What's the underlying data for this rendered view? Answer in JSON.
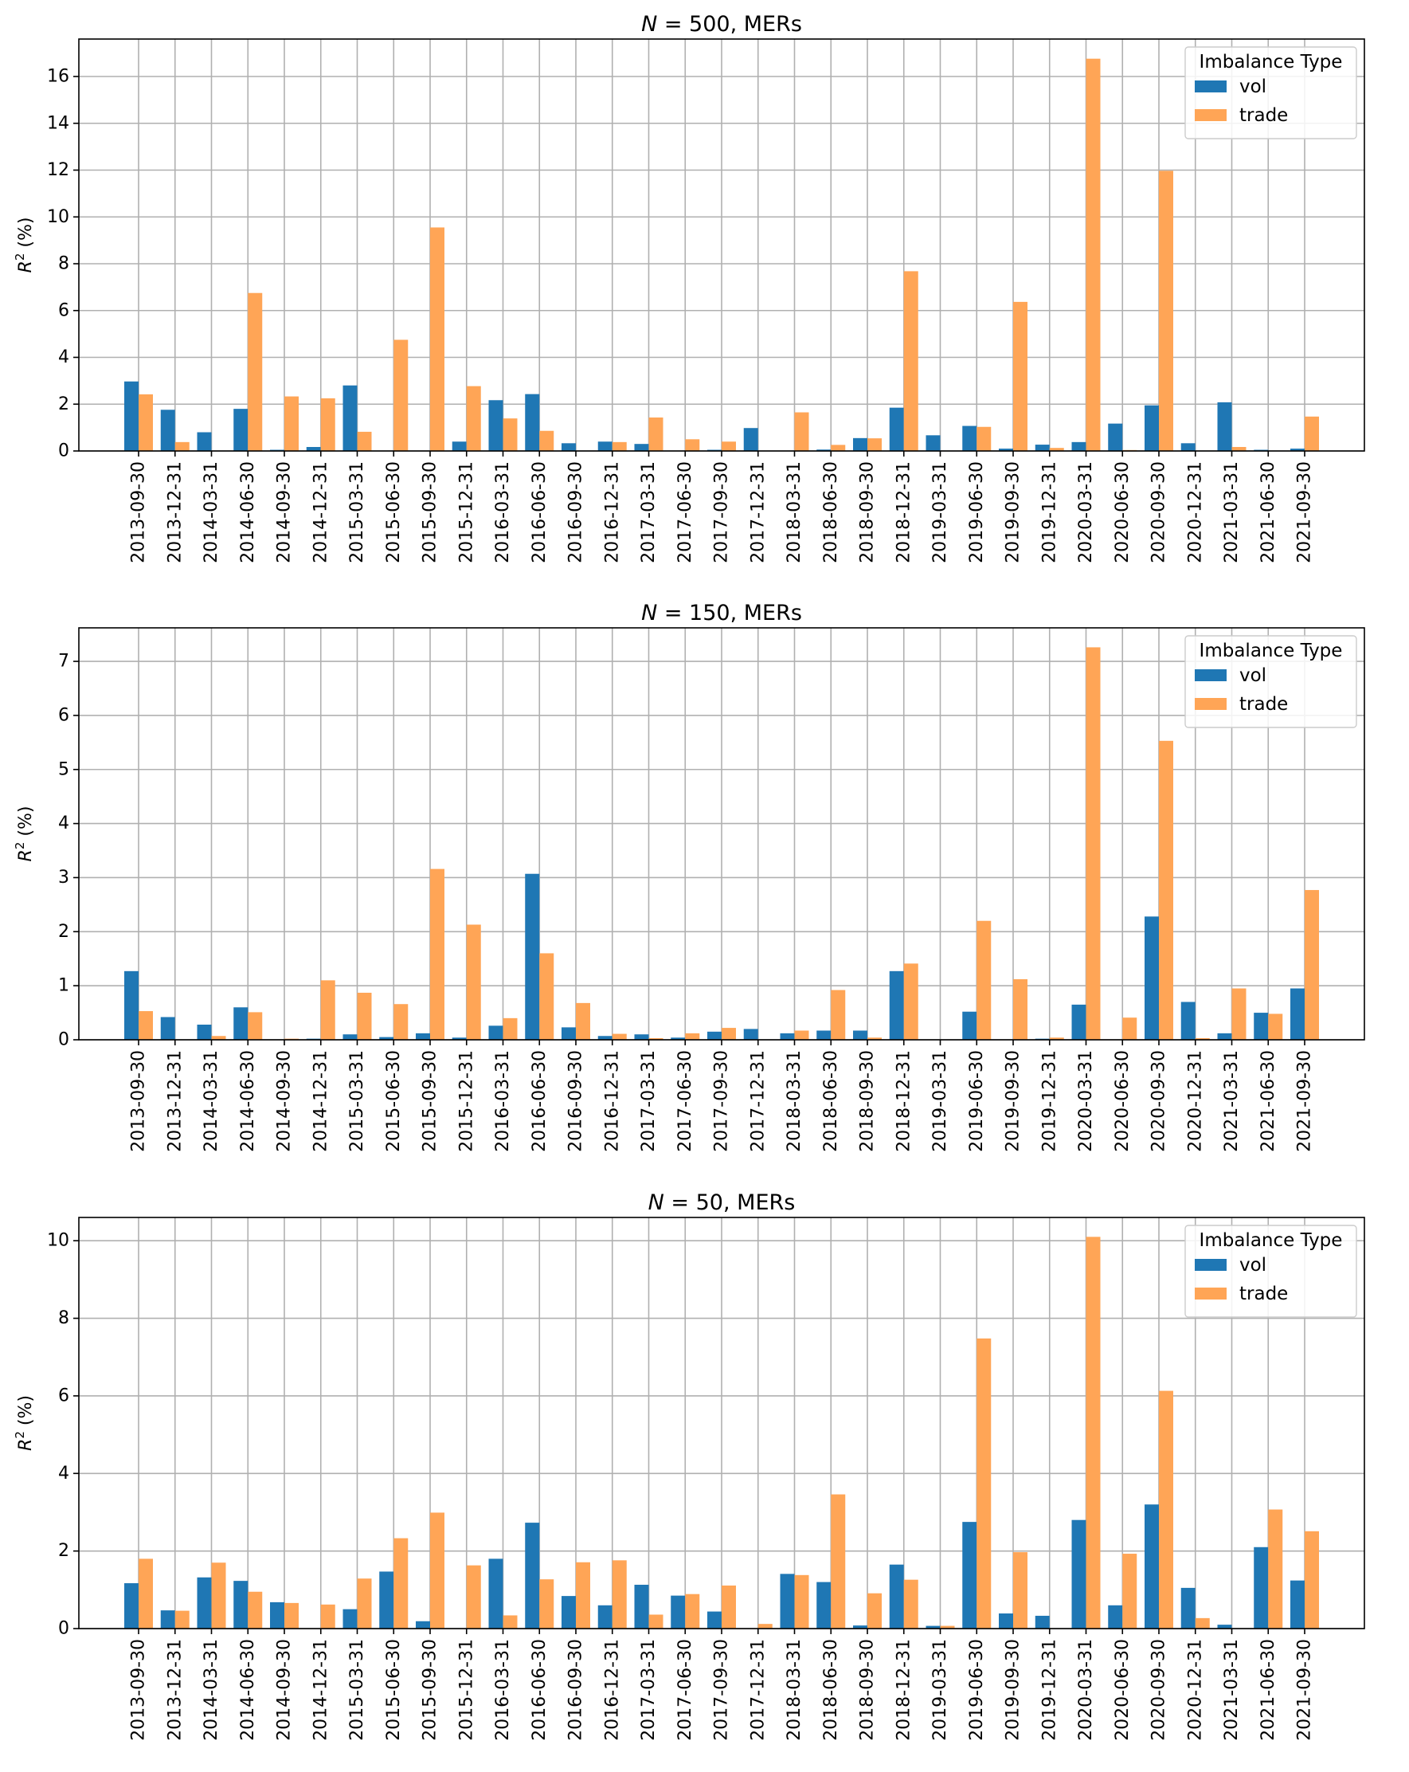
{
  "chart_data": [
    {
      "type": "bar",
      "title_prefix": "N",
      "title_suffix": " = 500, MERs",
      "ylabel": "R",
      "ylabel_sup": "2",
      "ylabel_suffix": " (%)",
      "ylim": [
        0,
        17.6
      ],
      "yticks": [
        0,
        2,
        4,
        6,
        8,
        10,
        12,
        14,
        16
      ],
      "grid": true,
      "legend_placement": "top-right",
      "legend_title": "Imbalance Type",
      "categories": [
        "2013-09-30",
        "2013-12-31",
        "2014-03-31",
        "2014-06-30",
        "2014-09-30",
        "2014-12-31",
        "2015-03-31",
        "2015-06-30",
        "2015-09-30",
        "2015-12-31",
        "2016-03-31",
        "2016-06-30",
        "2016-09-30",
        "2016-12-31",
        "2017-03-31",
        "2017-06-30",
        "2017-09-30",
        "2017-12-31",
        "2018-03-31",
        "2018-06-30",
        "2018-09-30",
        "2018-12-31",
        "2019-03-31",
        "2019-06-30",
        "2019-09-30",
        "2019-12-31",
        "2020-03-31",
        "2020-06-30",
        "2020-09-30",
        "2020-12-31",
        "2021-03-31",
        "2021-06-30",
        "2021-09-30"
      ],
      "series": [
        {
          "name": "vol",
          "color": "#1f77b4",
          "values": [
            2.97,
            1.76,
            0.8,
            1.8,
            0.05,
            0.17,
            2.8,
            0.0,
            0.0,
            0.4,
            2.17,
            2.43,
            0.33,
            0.4,
            0.3,
            0.0,
            0.05,
            0.98,
            0.0,
            0.06,
            0.55,
            1.85,
            0.67,
            1.07,
            0.1,
            0.27,
            0.38,
            1.17,
            1.95,
            0.33,
            2.08,
            0.05,
            0.1
          ]
        },
        {
          "name": "trade",
          "color": "#ffa556",
          "values": [
            2.42,
            0.38,
            0.0,
            6.75,
            2.33,
            2.25,
            0.82,
            4.75,
            9.55,
            2.77,
            1.39,
            0.86,
            0.0,
            0.38,
            1.43,
            0.5,
            0.4,
            0.0,
            1.65,
            0.26,
            0.54,
            7.68,
            0.0,
            1.03,
            6.37,
            0.13,
            16.76,
            0.04,
            11.97,
            0.0,
            0.17,
            0.0,
            1.47
          ]
        }
      ]
    },
    {
      "type": "bar",
      "title_prefix": "N",
      "title_suffix": " = 150, MERs",
      "ylabel": "R",
      "ylabel_sup": "2",
      "ylabel_suffix": " (%)",
      "ylim": [
        0,
        7.62
      ],
      "yticks": [
        0,
        1,
        2,
        3,
        4,
        5,
        6,
        7
      ],
      "grid": true,
      "legend_placement": "top-right",
      "legend_title": "Imbalance Type",
      "categories": [
        "2013-09-30",
        "2013-12-31",
        "2014-03-31",
        "2014-06-30",
        "2014-09-30",
        "2014-12-31",
        "2015-03-31",
        "2015-06-30",
        "2015-09-30",
        "2015-12-31",
        "2016-03-31",
        "2016-06-30",
        "2016-09-30",
        "2016-12-31",
        "2017-03-31",
        "2017-06-30",
        "2017-09-30",
        "2017-12-31",
        "2018-03-31",
        "2018-06-30",
        "2018-09-30",
        "2018-12-31",
        "2019-03-31",
        "2019-06-30",
        "2019-09-30",
        "2019-12-31",
        "2020-03-31",
        "2020-06-30",
        "2020-09-30",
        "2020-12-31",
        "2021-03-31",
        "2021-06-30",
        "2021-09-30"
      ],
      "series": [
        {
          "name": "vol",
          "color": "#1f77b4",
          "values": [
            1.27,
            0.42,
            0.28,
            0.6,
            0.0,
            0.02,
            0.1,
            0.05,
            0.12,
            0.04,
            0.26,
            3.07,
            0.23,
            0.07,
            0.1,
            0.04,
            0.15,
            0.2,
            0.12,
            0.17,
            0.17,
            1.27,
            0.0,
            0.52,
            0.0,
            0.02,
            0.65,
            0.0,
            2.28,
            0.7,
            0.12,
            0.5,
            0.95
          ]
        },
        {
          "name": "trade",
          "color": "#ffa556",
          "values": [
            0.53,
            0.0,
            0.07,
            0.51,
            0.02,
            1.1,
            0.87,
            0.66,
            3.16,
            2.13,
            0.4,
            1.6,
            0.68,
            0.11,
            0.03,
            0.12,
            0.22,
            0.0,
            0.17,
            0.92,
            0.04,
            1.41,
            0.0,
            2.2,
            1.12,
            0.04,
            7.26,
            0.41,
            5.53,
            0.03,
            0.95,
            0.48,
            2.77
          ]
        }
      ]
    },
    {
      "type": "bar",
      "title_prefix": "N",
      "title_suffix": " = 50, MERs",
      "ylabel": "R",
      "ylabel_sup": "2",
      "ylabel_suffix": " (%)",
      "ylim": [
        0,
        10.6
      ],
      "yticks": [
        0,
        2,
        4,
        6,
        8,
        10
      ],
      "grid": true,
      "legend_placement": "top-right",
      "legend_title": "Imbalance Type",
      "categories": [
        "2013-09-30",
        "2013-12-31",
        "2014-03-31",
        "2014-06-30",
        "2014-09-30",
        "2014-12-31",
        "2015-03-31",
        "2015-06-30",
        "2015-09-30",
        "2015-12-31",
        "2016-03-31",
        "2016-06-30",
        "2016-09-30",
        "2016-12-31",
        "2017-03-31",
        "2017-06-30",
        "2017-09-30",
        "2017-12-31",
        "2018-03-31",
        "2018-06-30",
        "2018-09-30",
        "2018-12-31",
        "2019-03-31",
        "2019-06-30",
        "2019-09-30",
        "2019-12-31",
        "2020-03-31",
        "2020-06-30",
        "2020-09-30",
        "2020-12-31",
        "2021-03-31",
        "2021-06-30",
        "2021-09-30"
      ],
      "series": [
        {
          "name": "vol",
          "color": "#1f77b4",
          "values": [
            1.17,
            0.47,
            1.32,
            1.23,
            0.68,
            0.0,
            0.5,
            1.47,
            0.19,
            0.0,
            1.8,
            2.73,
            0.84,
            0.6,
            1.13,
            0.85,
            0.44,
            0.0,
            1.41,
            1.2,
            0.08,
            1.65,
            0.07,
            2.75,
            0.39,
            0.33,
            2.8,
            0.6,
            3.2,
            1.05,
            0.1,
            2.1,
            1.24
          ]
        },
        {
          "name": "trade",
          "color": "#ffa556",
          "values": [
            1.8,
            0.46,
            1.7,
            0.95,
            0.66,
            0.62,
            1.29,
            2.33,
            2.99,
            1.63,
            0.34,
            1.27,
            1.71,
            1.76,
            0.36,
            0.89,
            1.11,
            0.12,
            1.38,
            3.46,
            0.91,
            1.26,
            0.07,
            7.48,
            1.97,
            0.0,
            10.1,
            1.93,
            6.13,
            0.27,
            0.0,
            3.07,
            2.51
          ]
        }
      ]
    }
  ]
}
